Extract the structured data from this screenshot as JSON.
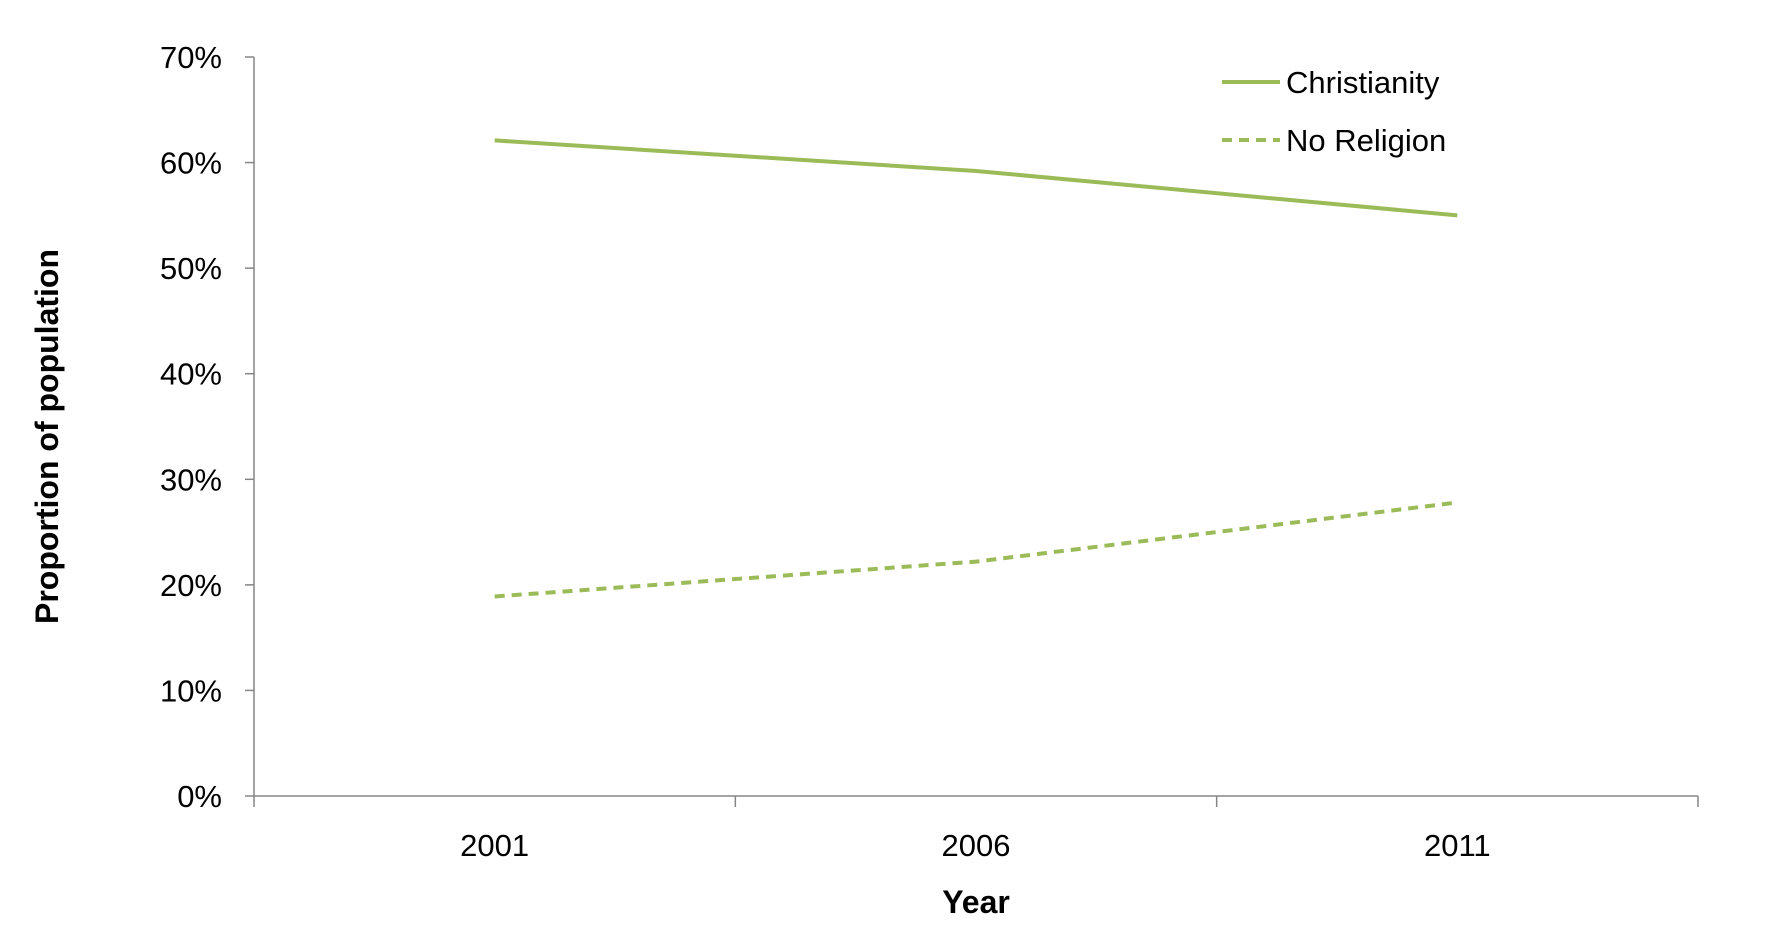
{
  "chart_data": {
    "type": "line",
    "title": "",
    "xlabel": "Year",
    "ylabel": "Proportion of population",
    "categories": [
      "2001",
      "2006",
      "2011"
    ],
    "ylim": [
      0,
      70
    ],
    "yticks": [
      "0%",
      "10%",
      "20%",
      "30%",
      "40%",
      "50%",
      "60%",
      "70%"
    ],
    "grid": false,
    "legend_position": "top-right",
    "series": [
      {
        "name": "Christianity",
        "values": [
          62.1,
          59.2,
          55.0
        ],
        "color": "#9BBB59",
        "style": "solid"
      },
      {
        "name": "No Religion",
        "values": [
          18.9,
          22.2,
          27.8
        ],
        "color": "#9BBB59",
        "style": "dashed"
      }
    ]
  }
}
